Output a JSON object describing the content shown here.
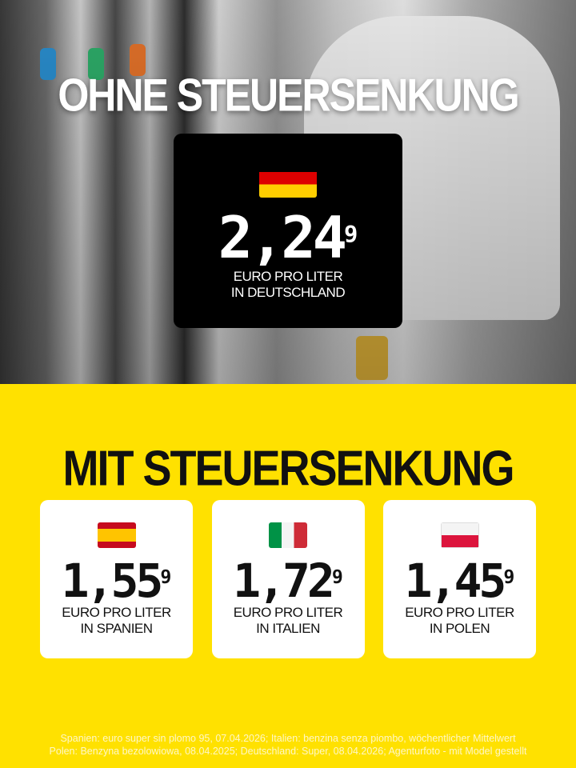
{
  "headline_top": "OHNE STEUERSENKUNG",
  "germany": {
    "flag": "germany-flag",
    "price_main": "2,24",
    "price_sup": "9",
    "line1": "EURO PRO LITER",
    "line2": "IN DEUTSCHLAND"
  },
  "headline_mid": "MIT STEUERSENKUNG",
  "countries": [
    {
      "flag": "spain-flag",
      "price_main": "1,55",
      "price_sup": "9",
      "line1": "EURO PRO LITER",
      "line2": "IN SPANIEN"
    },
    {
      "flag": "italy-flag",
      "price_main": "1,72",
      "price_sup": "9",
      "line1": "EURO PRO LITER",
      "line2": "IN ITALIEN"
    },
    {
      "flag": "poland-flag",
      "price_main": "1,45",
      "price_sup": "9",
      "line1": "EURO PRO LITER",
      "line2": "IN POLEN"
    }
  ],
  "footer": {
    "line1": "Spanien: euro super sin plomo 95, 07.04.2026; Italien: benzina senza piombo, wöchentlicher Mittelwert",
    "line2": "Polen: Benzyna bezolowiowa, 08.04.2025; Deutschland: Super, 08.04.2026; Agenturfoto - mit Model gestellt"
  },
  "colors": {
    "background": "#ffe100",
    "card": "#ffffff",
    "de_card": "#000000"
  }
}
